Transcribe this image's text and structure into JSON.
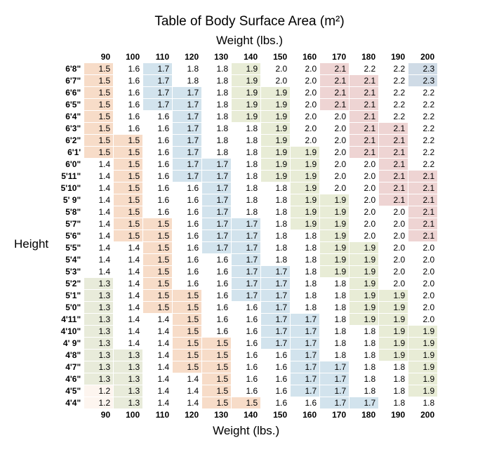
{
  "title": "Table of Body Surface Area (m²)",
  "weight_label": "Weight (lbs.)",
  "height_label": "Height",
  "weights": [
    90,
    100,
    110,
    120,
    130,
    140,
    150,
    160,
    170,
    180,
    190,
    200
  ],
  "heights": [
    "6'8\"",
    "6'7\"",
    "6'6\"",
    "6'5\"",
    "6'4\"",
    "6'3\"",
    "6'2\"",
    "6'1'",
    "6'0\"",
    "5'11\"",
    "5'10\"",
    "5' 9\"",
    "5'8\"",
    "5'7\"",
    "5'6\"",
    "5'5\"",
    "5'4\"",
    "5'3\"",
    "5'2\"",
    "5'1\"",
    "5'0\"",
    "4'11\"",
    "4'10\"",
    "4' 9\"",
    "4'8\"",
    "4'7\"",
    "4'6\"",
    "4'5\"",
    "4'4\""
  ],
  "data": [
    [
      1.5,
      1.6,
      1.7,
      1.8,
      1.8,
      1.9,
      2.0,
      2.0,
      2.1,
      2.2,
      2.2,
      2.3
    ],
    [
      1.5,
      1.6,
      1.7,
      1.8,
      1.8,
      1.9,
      2.0,
      2.0,
      2.1,
      2.1,
      2.2,
      2.3
    ],
    [
      1.5,
      1.6,
      1.7,
      1.7,
      1.8,
      1.9,
      1.9,
      2.0,
      2.1,
      2.1,
      2.2,
      2.2
    ],
    [
      1.5,
      1.6,
      1.7,
      1.7,
      1.8,
      1.9,
      1.9,
      2.0,
      2.1,
      2.1,
      2.2,
      2.2
    ],
    [
      1.5,
      1.6,
      1.6,
      1.7,
      1.8,
      1.9,
      1.9,
      2.0,
      2.0,
      2.1,
      2.2,
      2.2
    ],
    [
      1.5,
      1.6,
      1.6,
      1.7,
      1.8,
      1.8,
      1.9,
      2.0,
      2.0,
      2.1,
      2.1,
      2.2
    ],
    [
      1.5,
      1.5,
      1.6,
      1.7,
      1.8,
      1.8,
      1.9,
      2.0,
      2.0,
      2.1,
      2.1,
      2.2
    ],
    [
      1.5,
      1.5,
      1.6,
      1.7,
      1.8,
      1.8,
      1.9,
      1.9,
      2.0,
      2.1,
      2.1,
      2.2
    ],
    [
      1.4,
      1.5,
      1.6,
      1.7,
      1.7,
      1.8,
      1.9,
      1.9,
      2.0,
      2.0,
      2.1,
      2.2
    ],
    [
      1.4,
      1.5,
      1.6,
      1.7,
      1.7,
      1.8,
      1.9,
      1.9,
      2.0,
      2.0,
      2.1,
      2.1
    ],
    [
      1.4,
      1.5,
      1.6,
      1.6,
      1.7,
      1.8,
      1.8,
      1.9,
      2.0,
      2.0,
      2.1,
      2.1
    ],
    [
      1.4,
      1.5,
      1.6,
      1.6,
      1.7,
      1.8,
      1.8,
      1.9,
      1.9,
      2.0,
      2.1,
      2.1
    ],
    [
      1.4,
      1.5,
      1.6,
      1.6,
      1.7,
      1.8,
      1.8,
      1.9,
      1.9,
      2.0,
      2.0,
      2.1
    ],
    [
      1.4,
      1.5,
      1.5,
      1.6,
      1.7,
      1.7,
      1.8,
      1.9,
      1.9,
      2.0,
      2.0,
      2.1
    ],
    [
      1.4,
      1.5,
      1.5,
      1.6,
      1.7,
      1.7,
      1.8,
      1.8,
      1.9,
      2.0,
      2.0,
      2.1
    ],
    [
      1.4,
      1.4,
      1.5,
      1.6,
      1.7,
      1.7,
      1.8,
      1.8,
      1.9,
      1.9,
      2.0,
      2.0
    ],
    [
      1.4,
      1.4,
      1.5,
      1.6,
      1.6,
      1.7,
      1.8,
      1.8,
      1.9,
      1.9,
      2.0,
      2.0
    ],
    [
      1.4,
      1.4,
      1.5,
      1.6,
      1.6,
      1.7,
      1.7,
      1.8,
      1.9,
      1.9,
      2.0,
      2.0
    ],
    [
      1.3,
      1.4,
      1.5,
      1.6,
      1.6,
      1.7,
      1.7,
      1.8,
      1.8,
      1.9,
      2.0,
      2.0
    ],
    [
      1.3,
      1.4,
      1.5,
      1.5,
      1.6,
      1.7,
      1.7,
      1.8,
      1.8,
      1.9,
      1.9,
      2.0
    ],
    [
      1.3,
      1.4,
      1.5,
      1.5,
      1.6,
      1.6,
      1.7,
      1.8,
      1.8,
      1.9,
      1.9,
      2.0
    ],
    [
      1.3,
      1.4,
      1.4,
      1.5,
      1.6,
      1.6,
      1.7,
      1.7,
      1.8,
      1.9,
      1.9,
      2.0
    ],
    [
      1.3,
      1.4,
      1.4,
      1.5,
      1.6,
      1.6,
      1.7,
      1.7,
      1.8,
      1.8,
      1.9,
      1.9
    ],
    [
      1.3,
      1.4,
      1.4,
      1.5,
      1.5,
      1.6,
      1.7,
      1.7,
      1.8,
      1.8,
      1.9,
      1.9
    ],
    [
      1.3,
      1.3,
      1.4,
      1.5,
      1.5,
      1.6,
      1.6,
      1.7,
      1.8,
      1.8,
      1.9,
      1.9
    ],
    [
      1.3,
      1.3,
      1.4,
      1.5,
      1.5,
      1.6,
      1.6,
      1.7,
      1.7,
      1.8,
      1.8,
      1.9
    ],
    [
      1.3,
      1.3,
      1.4,
      1.4,
      1.5,
      1.6,
      1.6,
      1.7,
      1.7,
      1.8,
      1.8,
      1.9
    ],
    [
      1.2,
      1.3,
      1.4,
      1.4,
      1.5,
      1.6,
      1.6,
      1.7,
      1.7,
      1.8,
      1.8,
      1.9
    ],
    [
      1.2,
      1.3,
      1.4,
      1.4,
      1.5,
      1.5,
      1.6,
      1.6,
      1.7,
      1.7,
      1.8,
      1.8
    ]
  ],
  "colors": {
    "1.2": "#fdf5ef",
    "1.3": "#e8ebda",
    "1.5": "#f7dcc8",
    "1.7": "#d2e3ed",
    "1.9": "#e8ecd6",
    "2.1": "#eed4d3",
    "2.3": "#cfdbe6"
  },
  "default_color": "#ffffff"
}
